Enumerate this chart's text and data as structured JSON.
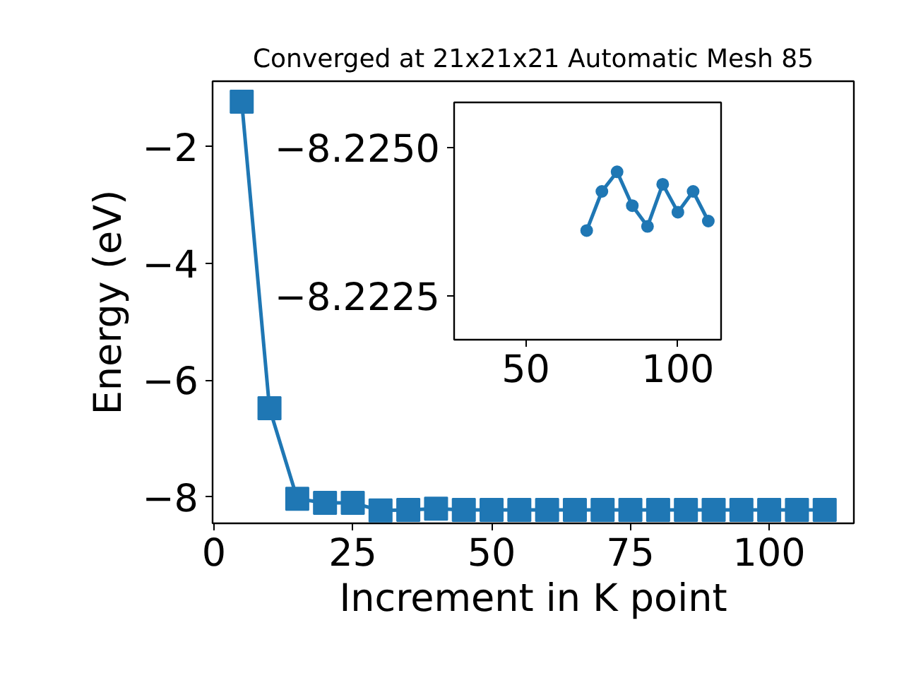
{
  "chart_data": [
    {
      "type": "line",
      "title": "Converged at 21x21x21 Automatic Mesh 85",
      "xlabel": "Increment in K point",
      "ylabel": "Energy (eV)",
      "x": [
        5,
        10,
        15,
        20,
        25,
        30,
        35,
        40,
        45,
        50,
        55,
        60,
        65,
        70,
        75,
        80,
        85,
        90,
        95,
        100,
        105,
        110
      ],
      "series": [
        {
          "color": "#1f77b4",
          "values": [
            -1.23,
            -6.48,
            -8.03,
            -8.1,
            -8.1,
            -8.23,
            -8.22,
            -8.2,
            -8.22,
            -8.22,
            -8.22,
            -8.22,
            -8.22,
            -8.22,
            -8.22,
            -8.22,
            -8.22,
            -8.22,
            -8.22,
            -8.22,
            -8.22,
            -8.22
          ]
        }
      ],
      "xlim": [
        -0.25,
        115.25
      ],
      "ylim": [
        -8.45,
        -0.88
      ],
      "xticks": [
        0,
        25,
        50,
        75,
        100
      ],
      "yticks": [
        {
          "value": -8,
          "label": "−8"
        },
        {
          "value": -6,
          "label": "−6"
        },
        {
          "value": -4,
          "label": "−4"
        },
        {
          "value": -2,
          "label": "−2"
        }
      ],
      "marker": "square",
      "line_style": "solid",
      "grid": false
    },
    {
      "type": "line",
      "x": [
        70,
        75,
        80,
        85,
        90,
        95,
        100,
        105,
        110
      ],
      "series": [
        {
          "color": "#1f77b4",
          "values": [
            -8.2236,
            -8.22426,
            -8.22459,
            -8.22402,
            -8.22367,
            -8.22438,
            -8.22391,
            -8.22426,
            -8.22376
          ]
        }
      ],
      "xlim": [
        26.4,
        114.2
      ],
      "ylim": [
        -8.22176,
        -8.22576
      ],
      "xticks": [
        50,
        100
      ],
      "yticks": [
        {
          "value": -8.225,
          "label": "−8.2250"
        },
        {
          "value": -8.2225,
          "label": "−8.2225"
        }
      ],
      "marker": "circle",
      "line_style": "solid",
      "grid": false
    }
  ]
}
